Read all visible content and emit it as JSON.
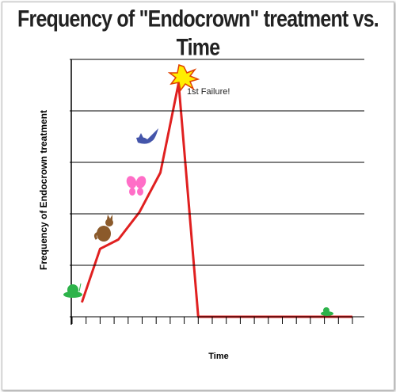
{
  "chart_data": {
    "type": "line",
    "title": "Frequency of \"Endocrown\" treatment vs. Time",
    "x_label": "Time",
    "y_label": "Frequency of Endocrown treatment",
    "annotation": "1st Failure!",
    "x": [
      0.7,
      2.0,
      3.3,
      4.8,
      6.3,
      7.6,
      9.0,
      20
    ],
    "series": [
      {
        "name": "Frequency",
        "color": "#e02020",
        "values": [
          0.28,
          1.32,
          1.5,
          2.03,
          2.8,
          4.54,
          0,
          0
        ]
      }
    ],
    "xlim": [
      0,
      20
    ],
    "xticks": [
      0,
      1,
      2,
      3,
      4,
      5,
      6,
      7,
      8,
      9,
      10,
      11,
      12,
      13,
      14,
      15,
      16,
      17,
      18,
      19,
      20
    ],
    "ylim": [
      0,
      5
    ],
    "yticks": [
      0,
      1,
      2,
      3,
      4,
      5
    ],
    "grid": true
  }
}
